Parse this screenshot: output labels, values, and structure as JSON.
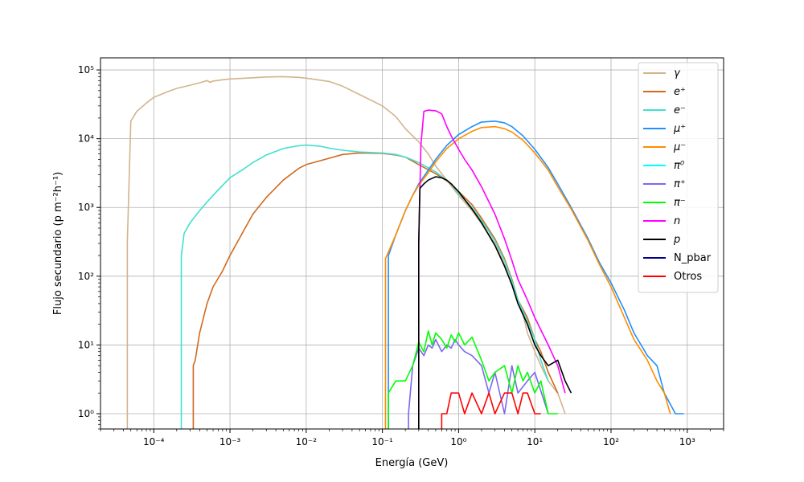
{
  "chart_data": {
    "type": "line",
    "xlabel": "Energía (GeV)",
    "ylabel": "Flujo secundario (p m⁻²h⁻¹)",
    "xscale": "log",
    "yscale": "log",
    "xlim": [
      2e-05,
      3000
    ],
    "ylim": [
      0.6,
      150000
    ],
    "grid": true,
    "legend_position": "top-right",
    "xticks": [
      {
        "value": 0.0001,
        "label": "10⁻⁴"
      },
      {
        "value": 0.001,
        "label": "10⁻³"
      },
      {
        "value": 0.01,
        "label": "10⁻²"
      },
      {
        "value": 0.1,
        "label": "10⁻¹"
      },
      {
        "value": 1,
        "label": "10⁰"
      },
      {
        "value": 10,
        "label": "10¹"
      },
      {
        "value": 100,
        "label": "10²"
      },
      {
        "value": 1000,
        "label": "10³"
      }
    ],
    "yticks": [
      {
        "value": 1,
        "label": "10⁰"
      },
      {
        "value": 10,
        "label": "10¹"
      },
      {
        "value": 100,
        "label": "10²"
      },
      {
        "value": 1000,
        "label": "10³"
      },
      {
        "value": 10000,
        "label": "10⁴"
      },
      {
        "value": 100000,
        "label": "10⁵"
      }
    ],
    "series": [
      {
        "name": "γ",
        "color": "#d2b48c",
        "x": [
          4.5e-05,
          5e-05,
          6e-05,
          8e-05,
          0.0001,
          0.00015,
          0.0002,
          0.0003,
          0.0004,
          0.0005,
          0.00055,
          0.0006,
          0.0008,
          0.001,
          0.002,
          0.003,
          0.005,
          0.008,
          0.01,
          0.02,
          0.03,
          0.05,
          0.1,
          0.15,
          0.2,
          0.3,
          0.4,
          0.5,
          0.7,
          1,
          1.5,
          2,
          3,
          4,
          5,
          6,
          7,
          8,
          10,
          12,
          15,
          20,
          25
        ],
        "values": [
          320,
          18000,
          25000,
          33000,
          40000,
          48000,
          54000,
          60000,
          65000,
          70000,
          66000,
          69000,
          72000,
          74000,
          77000,
          79000,
          80000,
          78000,
          76000,
          68000,
          58000,
          44000,
          30000,
          21000,
          14000,
          9000,
          6000,
          4000,
          2500,
          1500,
          900,
          580,
          300,
          150,
          90,
          45,
          28,
          15,
          8,
          5,
          3,
          2,
          1
        ]
      },
      {
        "name": "e⁺",
        "color": "#d2691e",
        "x": [
          0.00033,
          0.00035,
          0.0004,
          0.0005,
          0.0006,
          0.0008,
          0.001,
          0.0015,
          0.002,
          0.003,
          0.005,
          0.008,
          0.01,
          0.02,
          0.03,
          0.05,
          0.1,
          0.15,
          0.2,
          0.3,
          0.5,
          0.8,
          1,
          1.5,
          2,
          3,
          4,
          5,
          6,
          8,
          10,
          12,
          15,
          20
        ],
        "values": [
          5,
          6,
          15,
          40,
          70,
          120,
          200,
          450,
          800,
          1400,
          2500,
          3700,
          4200,
          5200,
          5900,
          6200,
          6100,
          5800,
          5400,
          4200,
          3100,
          2200,
          1700,
          1100,
          700,
          350,
          180,
          90,
          45,
          25,
          12,
          8,
          4,
          2
        ]
      },
      {
        "name": "e⁻",
        "color": "#40e0d0",
        "x": [
          0.00023,
          0.00025,
          0.0003,
          0.0004,
          0.0005,
          0.0006,
          0.0008,
          0.001,
          0.0015,
          0.002,
          0.003,
          0.005,
          0.008,
          0.01,
          0.015,
          0.02,
          0.03,
          0.05,
          0.1,
          0.15,
          0.2,
          0.3,
          0.5,
          0.8,
          1,
          1.5,
          2,
          3,
          4,
          5,
          6,
          8,
          10,
          12,
          15
        ],
        "values": [
          200,
          420,
          600,
          900,
          1200,
          1500,
          2100,
          2700,
          3600,
          4500,
          5800,
          7200,
          7900,
          8100,
          7800,
          7300,
          6800,
          6400,
          6200,
          5900,
          5400,
          4500,
          3300,
          2200,
          1600,
          1000,
          650,
          330,
          170,
          85,
          45,
          22,
          12,
          6,
          3
        ]
      },
      {
        "name": "μ⁺",
        "color": "#1e90ff",
        "x": [
          0.12,
          0.15,
          0.2,
          0.25,
          0.3,
          0.4,
          0.5,
          0.7,
          1,
          1.5,
          2,
          3,
          4,
          5,
          7,
          10,
          15,
          20,
          30,
          50,
          70,
          100,
          150,
          200,
          300,
          400,
          500,
          700,
          800,
          900
        ],
        "values": [
          200,
          400,
          900,
          1500,
          2200,
          3500,
          5000,
          8000,
          11500,
          15000,
          17500,
          18000,
          17000,
          15000,
          11000,
          7000,
          3800,
          2200,
          1000,
          350,
          160,
          80,
          32,
          15,
          7,
          5,
          2,
          1,
          1,
          1
        ]
      },
      {
        "name": "μ⁻",
        "color": "#ff8c00",
        "x": [
          0.11,
          0.15,
          0.2,
          0.25,
          0.3,
          0.4,
          0.5,
          0.7,
          1,
          1.5,
          2,
          3,
          4,
          5,
          7,
          10,
          15,
          20,
          30,
          50,
          70,
          100,
          150,
          200,
          300,
          400,
          500,
          600
        ],
        "values": [
          180,
          400,
          900,
          1500,
          2100,
          3200,
          4600,
          7200,
          10000,
          12800,
          14500,
          15000,
          14000,
          12500,
          9500,
          6200,
          3500,
          2000,
          950,
          330,
          150,
          70,
          25,
          12,
          6,
          3,
          2,
          1
        ]
      },
      {
        "name": "π⁰",
        "color": "#00ffff",
        "x": [],
        "values": []
      },
      {
        "name": "π⁺",
        "color": "#7b68ee",
        "x": [
          0.22,
          0.25,
          0.3,
          0.35,
          0.4,
          0.45,
          0.5,
          0.6,
          0.7,
          0.8,
          0.9,
          1,
          1.2,
          1.5,
          2,
          2.5,
          3,
          4,
          5,
          6,
          8,
          10,
          15
        ],
        "values": [
          1,
          5,
          9,
          7,
          10,
          9,
          12,
          8,
          10,
          9,
          12,
          10,
          8,
          7,
          5,
          2,
          4,
          1,
          5,
          2,
          3,
          4,
          1
        ]
      },
      {
        "name": "π⁻",
        "color": "#00ff00",
        "x": [
          0.12,
          0.15,
          0.2,
          0.25,
          0.3,
          0.35,
          0.4,
          0.45,
          0.5,
          0.6,
          0.7,
          0.8,
          0.9,
          1,
          1.2,
          1.5,
          2,
          2.5,
          3,
          4,
          5,
          6,
          7,
          8,
          10,
          12,
          15,
          20
        ],
        "values": [
          2,
          3,
          3,
          5,
          11,
          8,
          16,
          10,
          15,
          12,
          9,
          14,
          11,
          15,
          10,
          13,
          6,
          3,
          4,
          5,
          2,
          5,
          3,
          4,
          2,
          3,
          1,
          1
        ]
      },
      {
        "name": "n",
        "color": "#ff00ff",
        "x": [
          0.3,
          0.32,
          0.35,
          0.4,
          0.5,
          0.6,
          0.7,
          0.8,
          1,
          1.2,
          1.5,
          2,
          3,
          4,
          5,
          6,
          8,
          10,
          15,
          20,
          25
        ],
        "values": [
          300,
          8000,
          25000,
          26000,
          25500,
          23000,
          15000,
          11000,
          7000,
          5000,
          3500,
          2000,
          800,
          350,
          170,
          90,
          45,
          25,
          10,
          5,
          2
        ]
      },
      {
        "name": "p",
        "color": "#000000",
        "x": [
          0.3,
          0.31,
          0.35,
          0.4,
          0.5,
          0.6,
          0.7,
          0.8,
          1,
          1.2,
          1.5,
          2,
          3,
          4,
          5,
          6,
          8,
          10,
          12,
          15,
          20,
          25,
          30
        ],
        "values": [
          300,
          1900,
          2200,
          2500,
          2800,
          2700,
          2500,
          2200,
          1700,
          1300,
          950,
          600,
          280,
          140,
          75,
          40,
          20,
          10,
          7,
          5,
          6,
          3,
          2
        ]
      },
      {
        "name": "N_pbar",
        "color": "#00008b",
        "x": [],
        "values": []
      },
      {
        "name": "Otros",
        "color": "#ff0000",
        "x": [
          0.6,
          0.7,
          0.8,
          1,
          1.2,
          1.5,
          2,
          2.5,
          3,
          4,
          5,
          6,
          7,
          8,
          10,
          12
        ],
        "values": [
          1,
          1,
          2,
          2,
          1,
          2,
          1,
          2,
          1,
          2,
          2,
          1,
          2,
          2,
          1,
          1
        ]
      }
    ]
  }
}
